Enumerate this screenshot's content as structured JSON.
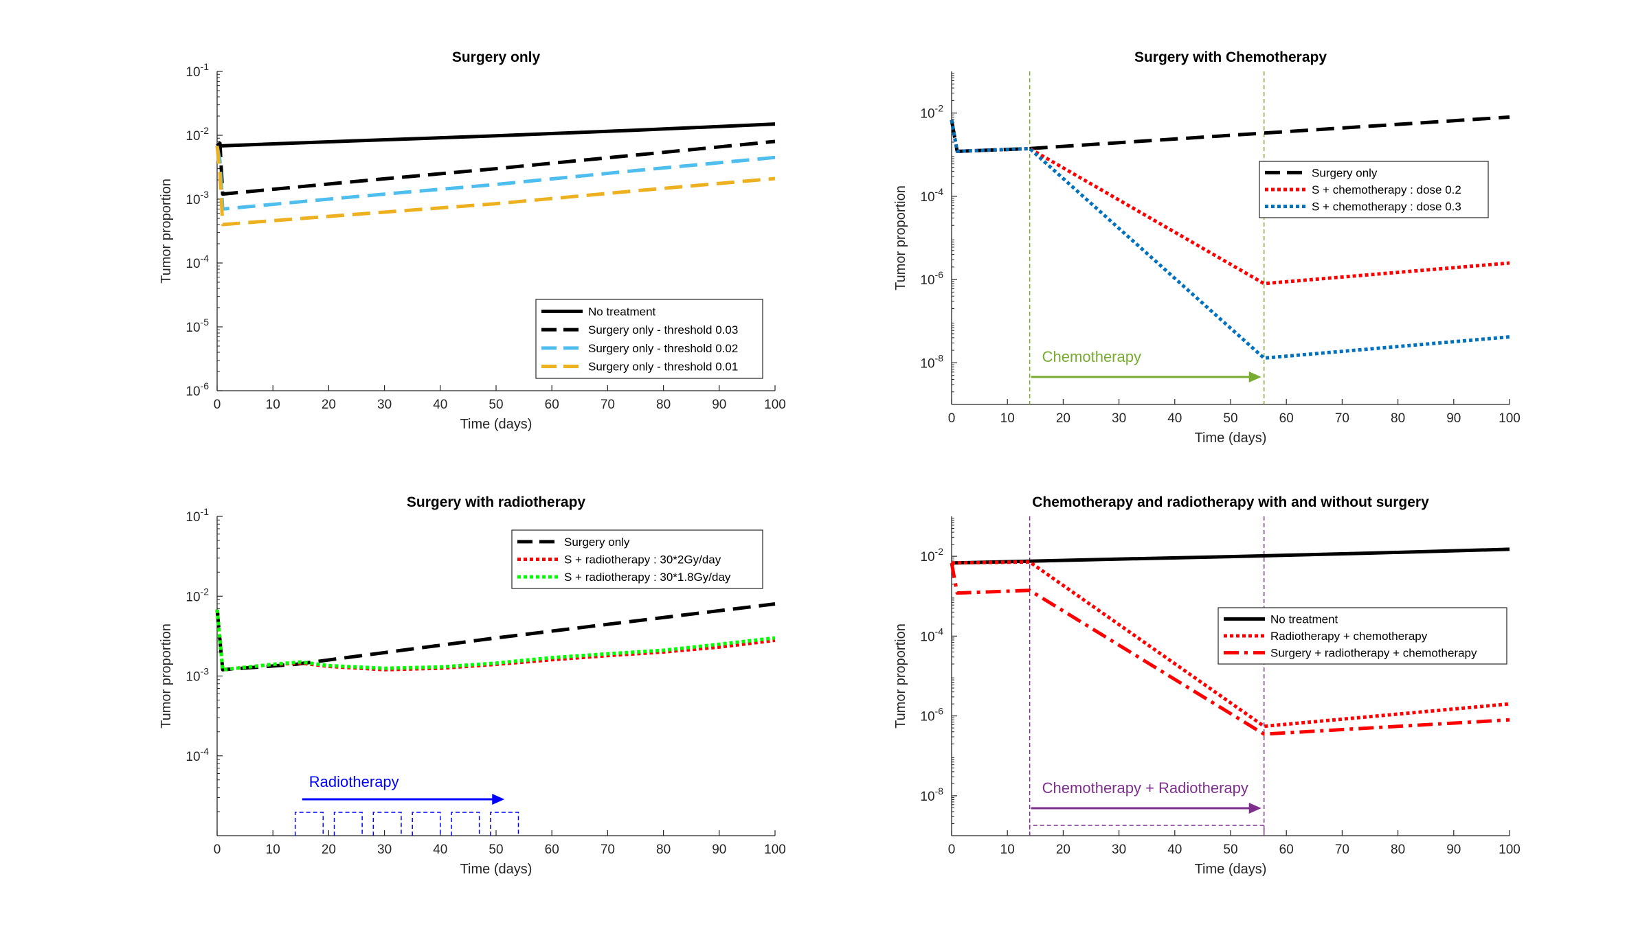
{
  "colors": {
    "black": "#000000",
    "blue_light": "#4DBEEE",
    "orange": "#EDB120",
    "red": "#FF0000",
    "blue_dark": "#0072BD",
    "green": "#00FF00",
    "olive": "#77AC30",
    "purple": "#7E2F8E",
    "pure_blue": "#0000FF"
  },
  "chart_data": [
    {
      "type": "line",
      "title": "Surgery only",
      "xlabel": "Time (days)",
      "ylabel": "Tumor proportion",
      "xlim": [
        0,
        100
      ],
      "ylim": [
        1e-06,
        0.1
      ],
      "yscale": "log",
      "xticks": [
        "0",
        "10",
        "20",
        "30",
        "40",
        "50",
        "60",
        "70",
        "80",
        "90",
        "100"
      ],
      "yticks": [
        {
          "base": "10",
          "exp": "-6"
        },
        {
          "base": "10",
          "exp": "-5"
        },
        {
          "base": "10",
          "exp": "-4"
        },
        {
          "base": "10",
          "exp": "-3"
        },
        {
          "base": "10",
          "exp": "-2"
        },
        {
          "base": "10",
          "exp": "-1"
        }
      ],
      "legend_position": "bottom-right",
      "series": [
        {
          "name": "No treatment",
          "style": "solid",
          "color": "#000000",
          "points": [
            [
              0,
              0.0068
            ],
            [
              25,
              0.0082
            ],
            [
              50,
              0.0098
            ],
            [
              75,
              0.012
            ],
            [
              100,
              0.015
            ]
          ]
        },
        {
          "name": "Surgery only - threshold 0.03",
          "style": "dash",
          "color": "#000000",
          "points": [
            [
              0,
              0.0068
            ],
            [
              0.5,
              0.0075
            ],
            [
              1,
              0.0012
            ],
            [
              25,
              0.0019
            ],
            [
              50,
              0.003
            ],
            [
              75,
              0.0049
            ],
            [
              100,
              0.008
            ]
          ]
        },
        {
          "name": "Surgery only - threshold 0.02",
          "style": "dash",
          "color": "#4DBEEE",
          "points": [
            [
              0,
              0.0068
            ],
            [
              0.5,
              0.004
            ],
            [
              1,
              0.0007
            ],
            [
              25,
              0.0011
            ],
            [
              50,
              0.0017
            ],
            [
              75,
              0.0028
            ],
            [
              100,
              0.0045
            ]
          ]
        },
        {
          "name": "Surgery only - threshold 0.01",
          "style": "dash",
          "color": "#EDB120",
          "points": [
            [
              0,
              0.0068
            ],
            [
              0.5,
              0.0025
            ],
            [
              1,
              0.0004
            ],
            [
              25,
              0.00058
            ],
            [
              50,
              0.00085
            ],
            [
              75,
              0.00135
            ],
            [
              100,
              0.0021
            ]
          ]
        }
      ]
    },
    {
      "type": "line",
      "title": "Surgery with Chemotherapy",
      "xlabel": "Time (days)",
      "ylabel": "Tumor proportion",
      "xlim": [
        0,
        100
      ],
      "ylim": [
        1e-09,
        0.1
      ],
      "yscale": "log",
      "xticks": [
        "0",
        "10",
        "20",
        "30",
        "40",
        "50",
        "60",
        "70",
        "80",
        "90",
        "100"
      ],
      "yticks": [
        {
          "base": "10",
          "exp": "-8"
        },
        {
          "base": "10",
          "exp": "-6"
        },
        {
          "base": "10",
          "exp": "-4"
        },
        {
          "base": "10",
          "exp": "-2"
        }
      ],
      "legend_position": "inside-right",
      "vlines": [
        14,
        56
      ],
      "annotation": {
        "text": "Chemotherapy",
        "from": 14,
        "to": 56
      },
      "series": [
        {
          "name": "Surgery only",
          "style": "dash",
          "color": "#000000",
          "points": [
            [
              0,
              0.0068
            ],
            [
              1,
              0.0012
            ],
            [
              14,
              0.0014
            ],
            [
              56,
              0.0033
            ],
            [
              100,
              0.008
            ]
          ]
        },
        {
          "name": "S + chemotherapy : dose 0.2",
          "style": "dot",
          "color": "#FF0000",
          "points": [
            [
              0,
              0.0068
            ],
            [
              1,
              0.0012
            ],
            [
              14,
              0.0014
            ],
            [
              56,
              8e-07
            ],
            [
              100,
              2.5e-06
            ]
          ]
        },
        {
          "name": "S + chemotherapy : dose 0.3",
          "style": "dot",
          "color": "#0072BD",
          "points": [
            [
              0,
              0.0068
            ],
            [
              1,
              0.0012
            ],
            [
              14,
              0.0014
            ],
            [
              56,
              1.3e-08
            ],
            [
              100,
              4.2e-08
            ]
          ]
        }
      ]
    },
    {
      "type": "line",
      "title": "Surgery with radiotherapy",
      "xlabel": "Time (days)",
      "ylabel": "Tumor proportion",
      "xlim": [
        0,
        100
      ],
      "ylim": [
        1e-05,
        0.1
      ],
      "yscale": "log",
      "xticks": [
        "0",
        "10",
        "20",
        "30",
        "40",
        "50",
        "60",
        "70",
        "80",
        "90",
        "100"
      ],
      "yticks": [
        {
          "base": "10",
          "exp": "-4"
        },
        {
          "base": "10",
          "exp": "-3"
        },
        {
          "base": "10",
          "exp": "-2"
        },
        {
          "base": "10",
          "exp": "-1"
        }
      ],
      "legend_position": "top-right",
      "annotation": {
        "text": "Radiotherapy",
        "from": 15,
        "to": 52
      },
      "pulses": [
        [
          14,
          19
        ],
        [
          21,
          26
        ],
        [
          28,
          33
        ],
        [
          35,
          40
        ],
        [
          42,
          47
        ],
        [
          49,
          54
        ]
      ],
      "series": [
        {
          "name": "Surgery only",
          "style": "dash",
          "color": "#000000",
          "points": [
            [
              0,
              0.0068
            ],
            [
              1,
              0.0012
            ],
            [
              14,
              0.0014
            ],
            [
              50,
              0.003
            ],
            [
              100,
              0.008
            ]
          ]
        },
        {
          "name": "S + radiotherapy : 30*2Gy/day",
          "style": "dot",
          "color": "#FF0000",
          "points": [
            [
              0,
              0.0068
            ],
            [
              1,
              0.0012
            ],
            [
              10,
              0.0014
            ],
            [
              15,
              0.00145
            ],
            [
              20,
              0.00132
            ],
            [
              30,
              0.0012
            ],
            [
              40,
              0.00125
            ],
            [
              50,
              0.0014
            ],
            [
              60,
              0.0016
            ],
            [
              70,
              0.0018
            ],
            [
              80,
              0.002
            ],
            [
              90,
              0.0023
            ],
            [
              100,
              0.0028
            ]
          ]
        },
        {
          "name": "S + radiotherapy : 30*1.8Gy/day",
          "style": "dot",
          "color": "#00FF00",
          "points": [
            [
              0,
              0.0068
            ],
            [
              1,
              0.0012
            ],
            [
              10,
              0.0014
            ],
            [
              15,
              0.0015
            ],
            [
              20,
              0.00135
            ],
            [
              30,
              0.00125
            ],
            [
              40,
              0.0013
            ],
            [
              50,
              0.00145
            ],
            [
              60,
              0.0017
            ],
            [
              70,
              0.0019
            ],
            [
              80,
              0.0021
            ],
            [
              90,
              0.0025
            ],
            [
              100,
              0.003
            ]
          ]
        }
      ]
    },
    {
      "type": "line",
      "title": "Chemotherapy and radiotherapy with and without surgery",
      "xlabel": "Time (days)",
      "ylabel": "Tumor proportion",
      "xlim": [
        0,
        100
      ],
      "ylim": [
        1e-09,
        0.1
      ],
      "yscale": "log",
      "xticks": [
        "0",
        "10",
        "20",
        "30",
        "40",
        "50",
        "60",
        "70",
        "80",
        "90",
        "100"
      ],
      "yticks": [
        {
          "base": "10",
          "exp": "-8"
        },
        {
          "base": "10",
          "exp": "-6"
        },
        {
          "base": "10",
          "exp": "-4"
        },
        {
          "base": "10",
          "exp": "-2"
        }
      ],
      "legend_position": "inside-right",
      "vlines": [
        14,
        56
      ],
      "annotation": {
        "text": "Chemotherapy + Radiotherapy",
        "from": 14,
        "to": 56
      },
      "pulses": [
        [
          14,
          56
        ]
      ],
      "series": [
        {
          "name": "No treatment",
          "style": "solid",
          "color": "#000000",
          "points": [
            [
              0,
              0.0068
            ],
            [
              25,
              0.0082
            ],
            [
              50,
              0.0098
            ],
            [
              75,
              0.012
            ],
            [
              100,
              0.015
            ]
          ]
        },
        {
          "name": "Radiotherapy + chemotherapy",
          "style": "dot",
          "color": "#FF0000",
          "points": [
            [
              0,
              0.0068
            ],
            [
              14,
              0.0072
            ],
            [
              56,
              5.5e-07
            ],
            [
              100,
              2e-06
            ]
          ]
        },
        {
          "name": "Surgery + radiotherapy + chemotherapy",
          "style": "dashdot",
          "color": "#FF0000",
          "points": [
            [
              0,
              0.0068
            ],
            [
              1,
              0.0012
            ],
            [
              14,
              0.0014
            ],
            [
              56,
              3.5e-07
            ],
            [
              100,
              8e-07
            ]
          ]
        }
      ]
    }
  ]
}
